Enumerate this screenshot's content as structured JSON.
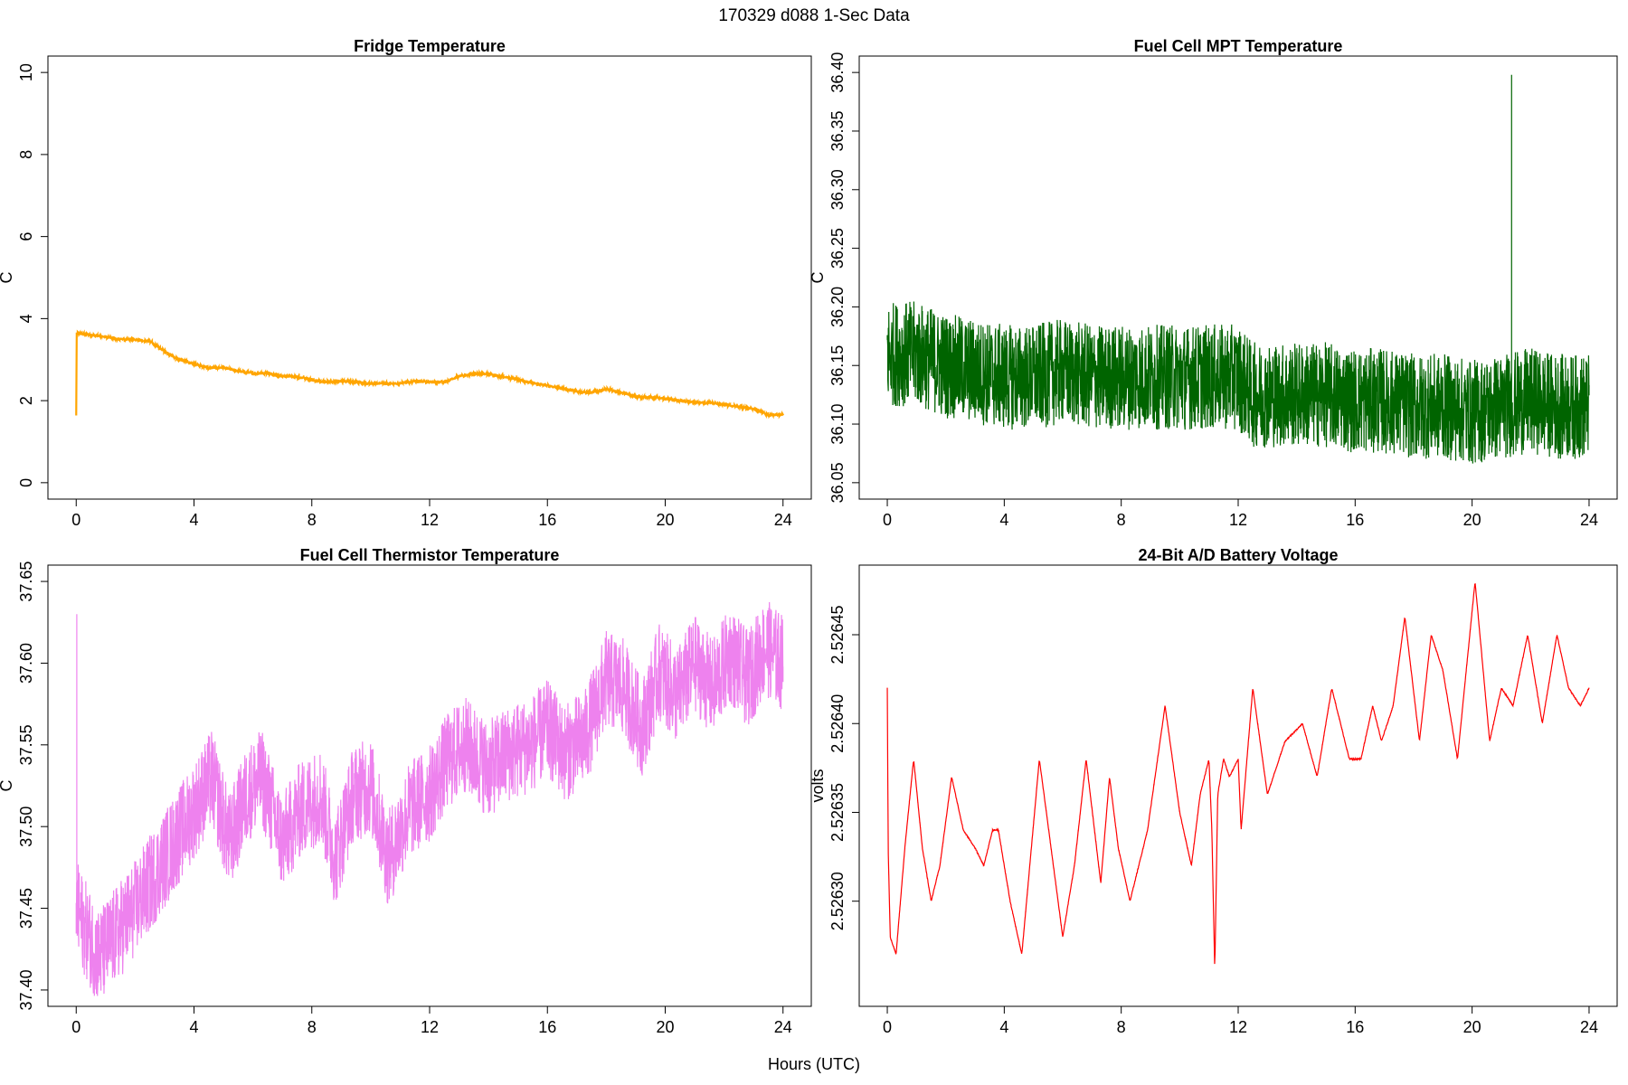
{
  "figure": {
    "suptitle": "170329   d088   1-Sec Data",
    "shared_xlabel": "Hours (UTC)"
  },
  "chart_data": [
    {
      "type": "line",
      "id": "fridge",
      "title": "Fridge Temperature",
      "xlabel": "",
      "ylabel": "C",
      "color": "#FFA500",
      "xlim": [
        0,
        24
      ],
      "ylim": [
        0,
        10
      ],
      "xticks": [
        0,
        4,
        8,
        12,
        16,
        20,
        24
      ],
      "yticks": [
        0,
        2,
        4,
        6,
        8,
        10
      ],
      "ytick_labels": [
        "0",
        "2",
        "4",
        "6",
        "8",
        "10"
      ],
      "noise": 0.03,
      "series": [
        {
          "name": "Fridge Temperature",
          "x": [
            0,
            0.01,
            0.05,
            0.5,
            1.0,
            1.5,
            2.0,
            2.5,
            3.0,
            3.5,
            4.0,
            4.5,
            5.0,
            5.5,
            6.0,
            6.5,
            7.0,
            7.5,
            8.0,
            8.5,
            9.0,
            9.5,
            10.0,
            10.5,
            11.0,
            11.5,
            12.0,
            12.5,
            13.0,
            13.5,
            14.0,
            14.5,
            15.0,
            15.5,
            16.0,
            16.5,
            17.0,
            17.5,
            18.0,
            18.5,
            19.0,
            19.5,
            20.0,
            20.5,
            21.0,
            21.5,
            22.0,
            22.5,
            23.0,
            23.5,
            24.0
          ],
          "y": [
            1.65,
            3.6,
            3.65,
            3.6,
            3.55,
            3.5,
            3.48,
            3.45,
            3.2,
            3.0,
            2.9,
            2.8,
            2.8,
            2.72,
            2.67,
            2.67,
            2.6,
            2.58,
            2.5,
            2.45,
            2.48,
            2.45,
            2.42,
            2.42,
            2.42,
            2.48,
            2.45,
            2.45,
            2.6,
            2.65,
            2.65,
            2.58,
            2.52,
            2.42,
            2.37,
            2.3,
            2.22,
            2.2,
            2.28,
            2.2,
            2.1,
            2.08,
            2.05,
            2.0,
            1.95,
            1.95,
            1.9,
            1.85,
            1.8,
            1.65,
            1.65
          ]
        }
      ]
    },
    {
      "type": "line",
      "id": "mpt",
      "title": "Fuel Cell MPT Temperature",
      "xlabel": "",
      "ylabel": "C",
      "color": "#006400",
      "xlim": [
        0,
        24
      ],
      "ylim": [
        36.05,
        36.4
      ],
      "xticks": [
        0,
        4,
        8,
        12,
        16,
        20,
        24
      ],
      "yticks": [
        36.05,
        36.1,
        36.15,
        36.2,
        36.25,
        36.3,
        36.35,
        36.4
      ],
      "ytick_labels": [
        "36.05",
        "36.10",
        "36.15",
        "36.20",
        "36.25",
        "36.30",
        "36.35",
        "36.40"
      ],
      "noise": 0.045,
      "spike": {
        "x": 21.35,
        "y": 36.398
      },
      "series": [
        {
          "name": "Fuel Cell MPT Temperature",
          "x": [
            0,
            1,
            2,
            3,
            4,
            5,
            6,
            7,
            8,
            9,
            10,
            11,
            12,
            12.5,
            13,
            14,
            15,
            16,
            17,
            18,
            19,
            20,
            21,
            22,
            23,
            24
          ],
          "y": [
            36.16,
            36.16,
            36.15,
            36.145,
            36.14,
            36.14,
            36.145,
            36.14,
            36.14,
            36.14,
            36.14,
            36.14,
            36.14,
            36.125,
            36.125,
            36.125,
            36.125,
            36.12,
            36.12,
            36.115,
            36.115,
            36.11,
            36.115,
            36.12,
            36.115,
            36.115
          ]
        }
      ]
    },
    {
      "type": "line",
      "id": "thermistor",
      "title": "Fuel Cell Thermistor Temperature",
      "xlabel": "",
      "ylabel": "C",
      "color": "#EE82EE",
      "xlim": [
        0,
        24
      ],
      "ylim": [
        37.4,
        37.65
      ],
      "xticks": [
        0,
        4,
        8,
        12,
        16,
        20,
        24
      ],
      "yticks": [
        37.4,
        37.45,
        37.5,
        37.55,
        37.6,
        37.65
      ],
      "ytick_labels": [
        "37.40",
        "37.45",
        "37.50",
        "37.55",
        "37.60",
        "37.65"
      ],
      "noise": 0.03,
      "spike": {
        "x": 0.02,
        "y": 37.63
      },
      "series": [
        {
          "name": "Fuel Cell Thermistor Temperature",
          "x": [
            0,
            0.5,
            0.8,
            1.2,
            2,
            3,
            4,
            4.6,
            5.2,
            5.8,
            6.3,
            7,
            7.6,
            8.3,
            8.8,
            9.4,
            10,
            10.6,
            11.3,
            12,
            12.6,
            13.2,
            14,
            14.7,
            15.4,
            16,
            16.6,
            17.3,
            18,
            18.6,
            19.2,
            19.8,
            20.4,
            21,
            21.6,
            22.2,
            22.8,
            23.4,
            24
          ],
          "y": [
            37.45,
            37.43,
            37.42,
            37.43,
            37.45,
            37.48,
            37.51,
            37.53,
            37.49,
            37.52,
            37.53,
            37.49,
            37.51,
            37.52,
            37.48,
            37.52,
            37.525,
            37.48,
            37.51,
            37.52,
            37.54,
            37.55,
            37.535,
            37.545,
            37.55,
            37.56,
            37.545,
            37.555,
            37.59,
            37.585,
            37.56,
            37.595,
            37.58,
            37.6,
            37.585,
            37.605,
            37.59,
            37.61,
            37.6
          ]
        }
      ]
    },
    {
      "type": "line",
      "id": "battery",
      "title": "24-Bit A/D Battery Voltage",
      "xlabel": "",
      "ylabel": "volts",
      "color": "#FF0000",
      "xlim": [
        0,
        24
      ],
      "ylim": [
        2.52625,
        2.52648
      ],
      "xticks": [
        0,
        4,
        8,
        12,
        16,
        20,
        24
      ],
      "yticks": [
        2.5263,
        2.52635,
        2.5264,
        2.52645
      ],
      "ytick_labels": [
        "2.52630",
        "2.52635",
        "2.52640",
        "2.52645"
      ],
      "noise": 4e-07,
      "series": [
        {
          "name": "24-Bit A/D Battery Voltage",
          "x": [
            0.0,
            0.03,
            0.1,
            0.3,
            0.6,
            0.9,
            1.2,
            1.5,
            1.8,
            2.2,
            2.6,
            3.0,
            3.3,
            3.6,
            3.8,
            4.2,
            4.6,
            5.2,
            5.6,
            6.0,
            6.4,
            6.8,
            7.3,
            7.6,
            7.9,
            8.3,
            8.9,
            9.5,
            10.0,
            10.4,
            10.7,
            11.0,
            11.1,
            11.2,
            11.3,
            11.5,
            11.7,
            12.0,
            12.1,
            12.5,
            13.0,
            13.6,
            14.2,
            14.7,
            15.2,
            15.8,
            16.2,
            16.6,
            16.9,
            17.3,
            17.7,
            18.2,
            18.6,
            19.0,
            19.5,
            20.1,
            20.6,
            21.0,
            21.4,
            21.9,
            22.4,
            22.9,
            23.3,
            23.7,
            24.0
          ],
          "y": [
            2.52642,
            2.52633,
            2.52628,
            2.52627,
            2.52633,
            2.52638,
            2.52633,
            2.5263,
            2.52632,
            2.52637,
            2.52634,
            2.52633,
            2.52632,
            2.52634,
            2.52634,
            2.5263,
            2.52627,
            2.52638,
            2.52633,
            2.52628,
            2.52632,
            2.52638,
            2.52631,
            2.52637,
            2.52633,
            2.5263,
            2.52634,
            2.52641,
            2.52635,
            2.52632,
            2.52636,
            2.52638,
            2.52634,
            2.52626,
            2.52636,
            2.52638,
            2.52637,
            2.52638,
            2.52634,
            2.52642,
            2.52636,
            2.52639,
            2.5264,
            2.52637,
            2.52642,
            2.52638,
            2.52638,
            2.52641,
            2.52639,
            2.52641,
            2.52646,
            2.52639,
            2.52645,
            2.52643,
            2.52638,
            2.52648,
            2.52639,
            2.52642,
            2.52641,
            2.52645,
            2.5264,
            2.52645,
            2.52642,
            2.52641,
            2.52642
          ]
        }
      ]
    }
  ]
}
